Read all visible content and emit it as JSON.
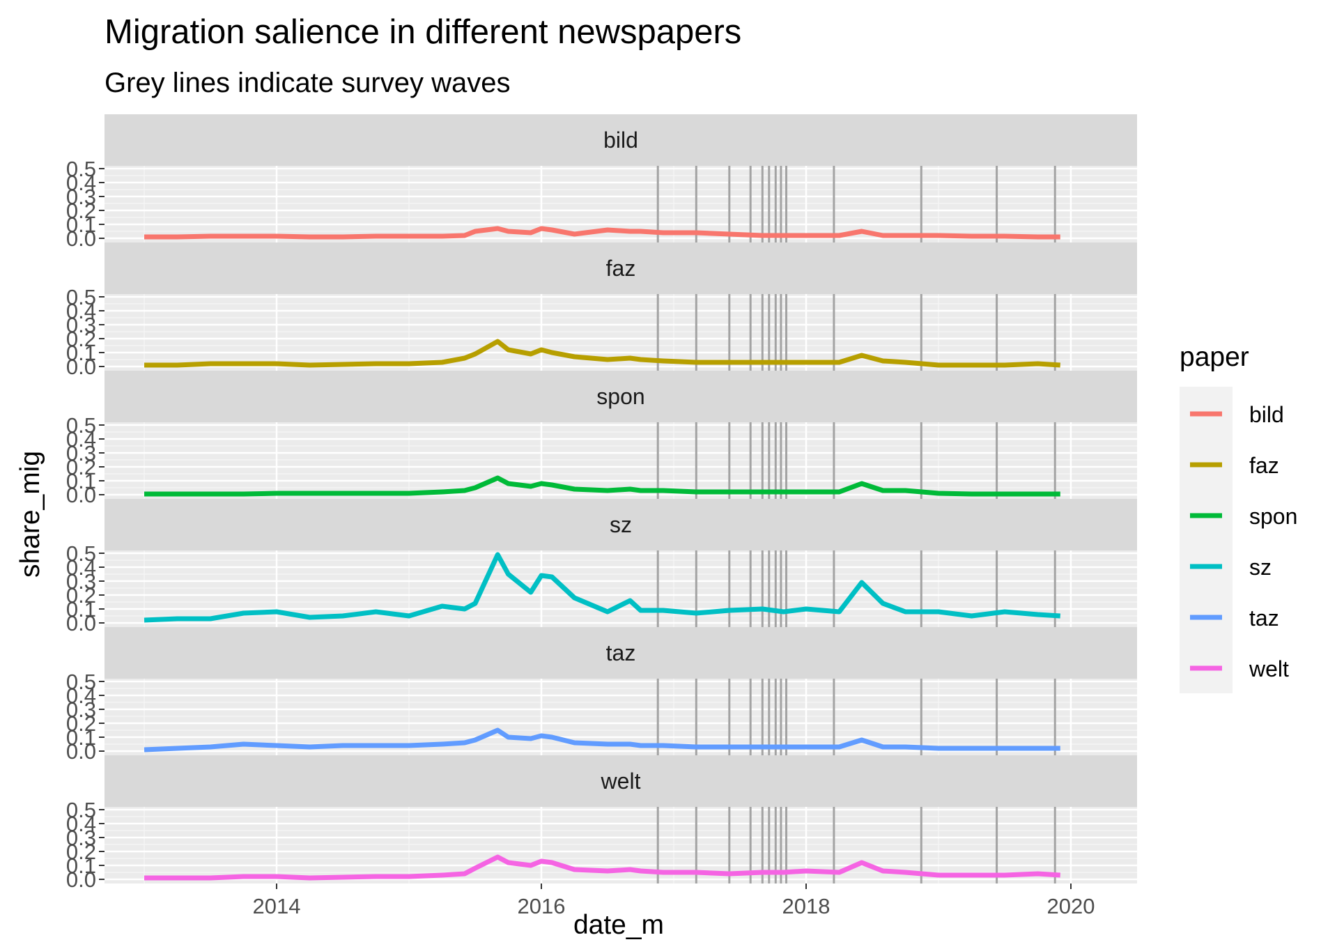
{
  "chart_data": {
    "type": "line",
    "title": "Migration salience in different newspapers",
    "subtitle": "Grey lines indicate survey waves",
    "xlabel": "date_m",
    "ylabel": "share_mig",
    "xlim": [
      2012.7,
      2020.5
    ],
    "ylim": [
      0,
      0.5
    ],
    "x_ticks": [
      2014,
      2016,
      2018,
      2020
    ],
    "x_tick_labels": [
      "2014",
      "2016",
      "2018",
      "2020"
    ],
    "y_ticks": [
      0,
      0.1,
      0.2,
      0.3,
      0.4,
      0.5
    ],
    "y_tick_labels": [
      "0.0",
      "0.1",
      "0.2",
      "0.3",
      "0.4",
      "0.5"
    ],
    "grid": true,
    "legend_title": "paper",
    "legend_position": "right",
    "survey_waves": [
      2016.88,
      2017.17,
      2017.42,
      2017.58,
      2017.67,
      2017.72,
      2017.77,
      2017.81,
      2017.85,
      2018.21,
      2018.87,
      2019.44,
      2019.88
    ],
    "x_points": [
      2013.0,
      2013.25,
      2013.5,
      2013.75,
      2014.0,
      2014.25,
      2014.5,
      2014.75,
      2015.0,
      2015.25,
      2015.42,
      2015.5,
      2015.67,
      2015.75,
      2015.92,
      2016.0,
      2016.08,
      2016.25,
      2016.5,
      2016.67,
      2016.75,
      2016.92,
      2017.17,
      2017.42,
      2017.67,
      2017.83,
      2018.0,
      2018.25,
      2018.42,
      2018.58,
      2018.75,
      2019.0,
      2019.25,
      2019.5,
      2019.75,
      2019.92
    ],
    "series": [
      {
        "name": "bild",
        "color": "#F8766D",
        "values": [
          0.01,
          0.01,
          0.015,
          0.015,
          0.015,
          0.01,
          0.01,
          0.015,
          0.015,
          0.015,
          0.02,
          0.05,
          0.07,
          0.05,
          0.04,
          0.07,
          0.06,
          0.03,
          0.06,
          0.05,
          0.05,
          0.04,
          0.04,
          0.03,
          0.02,
          0.02,
          0.02,
          0.02,
          0.05,
          0.02,
          0.02,
          0.02,
          0.015,
          0.015,
          0.01,
          0.01
        ]
      },
      {
        "name": "faz",
        "color": "#B79F00",
        "values": [
          0.01,
          0.01,
          0.02,
          0.02,
          0.02,
          0.01,
          0.015,
          0.02,
          0.02,
          0.03,
          0.06,
          0.09,
          0.18,
          0.12,
          0.09,
          0.12,
          0.1,
          0.07,
          0.05,
          0.06,
          0.05,
          0.04,
          0.03,
          0.03,
          0.03,
          0.03,
          0.03,
          0.03,
          0.08,
          0.04,
          0.03,
          0.01,
          0.01,
          0.01,
          0.02,
          0.01
        ]
      },
      {
        "name": "spon",
        "color": "#00BA38",
        "values": [
          0.005,
          0.005,
          0.005,
          0.005,
          0.01,
          0.01,
          0.01,
          0.01,
          0.01,
          0.02,
          0.03,
          0.05,
          0.12,
          0.08,
          0.06,
          0.08,
          0.07,
          0.04,
          0.03,
          0.04,
          0.03,
          0.03,
          0.02,
          0.02,
          0.02,
          0.02,
          0.02,
          0.02,
          0.08,
          0.03,
          0.03,
          0.01,
          0.005,
          0.005,
          0.005,
          0.005
        ]
      },
      {
        "name": "sz",
        "color": "#00BFC4",
        "values": [
          0.02,
          0.03,
          0.03,
          0.07,
          0.08,
          0.04,
          0.05,
          0.08,
          0.05,
          0.12,
          0.1,
          0.14,
          0.49,
          0.35,
          0.22,
          0.34,
          0.33,
          0.18,
          0.08,
          0.16,
          0.09,
          0.09,
          0.07,
          0.09,
          0.1,
          0.08,
          0.1,
          0.08,
          0.29,
          0.14,
          0.08,
          0.08,
          0.05,
          0.08,
          0.06,
          0.05
        ]
      },
      {
        "name": "taz",
        "color": "#619CFF",
        "values": [
          0.01,
          0.02,
          0.03,
          0.05,
          0.04,
          0.03,
          0.04,
          0.04,
          0.04,
          0.05,
          0.06,
          0.08,
          0.15,
          0.1,
          0.09,
          0.11,
          0.1,
          0.06,
          0.05,
          0.05,
          0.04,
          0.04,
          0.03,
          0.03,
          0.03,
          0.03,
          0.03,
          0.03,
          0.08,
          0.03,
          0.03,
          0.02,
          0.02,
          0.02,
          0.02,
          0.02
        ]
      },
      {
        "name": "welt",
        "color": "#F564E3",
        "values": [
          0.01,
          0.01,
          0.01,
          0.02,
          0.02,
          0.01,
          0.015,
          0.02,
          0.02,
          0.03,
          0.04,
          0.08,
          0.16,
          0.12,
          0.1,
          0.13,
          0.12,
          0.07,
          0.06,
          0.07,
          0.06,
          0.05,
          0.05,
          0.04,
          0.05,
          0.05,
          0.06,
          0.05,
          0.12,
          0.06,
          0.05,
          0.03,
          0.03,
          0.03,
          0.04,
          0.03
        ]
      }
    ]
  }
}
